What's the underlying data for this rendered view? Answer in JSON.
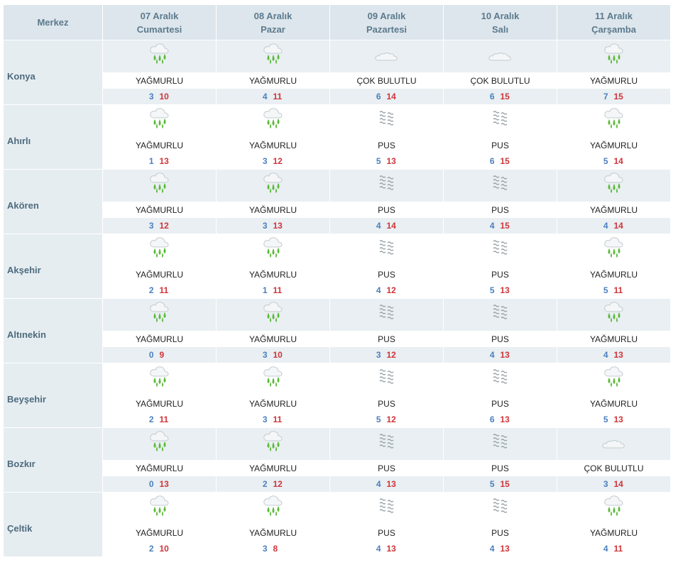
{
  "header": {
    "corner": "Merkez",
    "days": [
      {
        "date": "07 Aralık",
        "weekday": "Cumartesi"
      },
      {
        "date": "08 Aralık",
        "weekday": "Pazar"
      },
      {
        "date": "09 Aralık",
        "weekday": "Pazartesi"
      },
      {
        "date": "10 Aralık",
        "weekday": "Salı"
      },
      {
        "date": "11 Aralık",
        "weekday": "Çarşamba"
      }
    ]
  },
  "rows": [
    {
      "city": "Konya",
      "days": [
        {
          "icon": "rain-icon",
          "desc": "YAĞMURLU",
          "min": "3",
          "max": "10"
        },
        {
          "icon": "rain-icon",
          "desc": "YAĞMURLU",
          "min": "4",
          "max": "11"
        },
        {
          "icon": "cloud-icon",
          "desc": "ÇOK BULUTLU",
          "min": "6",
          "max": "14"
        },
        {
          "icon": "cloud-icon",
          "desc": "ÇOK BULUTLU",
          "min": "6",
          "max": "15"
        },
        {
          "icon": "rain-icon",
          "desc": "YAĞMURLU",
          "min": "7",
          "max": "15"
        }
      ]
    },
    {
      "city": "Ahırlı",
      "days": [
        {
          "icon": "rain-icon",
          "desc": "YAĞMURLU",
          "min": "1",
          "max": "13"
        },
        {
          "icon": "rain-icon",
          "desc": "YAĞMURLU",
          "min": "3",
          "max": "12"
        },
        {
          "icon": "haze-icon",
          "desc": "PUS",
          "min": "5",
          "max": "13"
        },
        {
          "icon": "haze-icon",
          "desc": "PUS",
          "min": "6",
          "max": "15"
        },
        {
          "icon": "rain-icon",
          "desc": "YAĞMURLU",
          "min": "5",
          "max": "14"
        }
      ]
    },
    {
      "city": "Akören",
      "days": [
        {
          "icon": "rain-icon",
          "desc": "YAĞMURLU",
          "min": "3",
          "max": "12"
        },
        {
          "icon": "rain-icon",
          "desc": "YAĞMURLU",
          "min": "3",
          "max": "13"
        },
        {
          "icon": "haze-icon",
          "desc": "PUS",
          "min": "4",
          "max": "14"
        },
        {
          "icon": "haze-icon",
          "desc": "PUS",
          "min": "4",
          "max": "15"
        },
        {
          "icon": "rain-icon",
          "desc": "YAĞMURLU",
          "min": "4",
          "max": "14"
        }
      ]
    },
    {
      "city": "Akşehir",
      "days": [
        {
          "icon": "rain-icon",
          "desc": "YAĞMURLU",
          "min": "2",
          "max": "11"
        },
        {
          "icon": "rain-icon",
          "desc": "YAĞMURLU",
          "min": "1",
          "max": "11"
        },
        {
          "icon": "haze-icon",
          "desc": "PUS",
          "min": "4",
          "max": "12"
        },
        {
          "icon": "haze-icon",
          "desc": "PUS",
          "min": "5",
          "max": "13"
        },
        {
          "icon": "rain-icon",
          "desc": "YAĞMURLU",
          "min": "5",
          "max": "11"
        }
      ]
    },
    {
      "city": "Altınekin",
      "days": [
        {
          "icon": "rain-icon",
          "desc": "YAĞMURLU",
          "min": "0",
          "max": "9"
        },
        {
          "icon": "rain-icon",
          "desc": "YAĞMURLU",
          "min": "3",
          "max": "10"
        },
        {
          "icon": "haze-icon",
          "desc": "PUS",
          "min": "3",
          "max": "12"
        },
        {
          "icon": "haze-icon",
          "desc": "PUS",
          "min": "4",
          "max": "13"
        },
        {
          "icon": "rain-icon",
          "desc": "YAĞMURLU",
          "min": "4",
          "max": "13"
        }
      ]
    },
    {
      "city": "Beyşehir",
      "days": [
        {
          "icon": "rain-icon",
          "desc": "YAĞMURLU",
          "min": "2",
          "max": "11"
        },
        {
          "icon": "rain-icon",
          "desc": "YAĞMURLU",
          "min": "3",
          "max": "11"
        },
        {
          "icon": "haze-icon",
          "desc": "PUS",
          "min": "5",
          "max": "12"
        },
        {
          "icon": "haze-icon",
          "desc": "PUS",
          "min": "6",
          "max": "13"
        },
        {
          "icon": "rain-icon",
          "desc": "YAĞMURLU",
          "min": "5",
          "max": "13"
        }
      ]
    },
    {
      "city": "Bozkır",
      "days": [
        {
          "icon": "rain-icon",
          "desc": "YAĞMURLU",
          "min": "0",
          "max": "13"
        },
        {
          "icon": "rain-icon",
          "desc": "YAĞMURLU",
          "min": "2",
          "max": "12"
        },
        {
          "icon": "haze-icon",
          "desc": "PUS",
          "min": "4",
          "max": "13"
        },
        {
          "icon": "haze-icon",
          "desc": "PUS",
          "min": "5",
          "max": "15"
        },
        {
          "icon": "cloud-icon",
          "desc": "ÇOK BULUTLU",
          "min": "3",
          "max": "14"
        }
      ]
    },
    {
      "city": "Çeltik",
      "days": [
        {
          "icon": "rain-icon",
          "desc": "YAĞMURLU",
          "min": "2",
          "max": "10"
        },
        {
          "icon": "rain-icon",
          "desc": "YAĞMURLU",
          "min": "3",
          "max": "8"
        },
        {
          "icon": "haze-icon",
          "desc": "PUS",
          "min": "4",
          "max": "13"
        },
        {
          "icon": "haze-icon",
          "desc": "PUS",
          "min": "4",
          "max": "13"
        },
        {
          "icon": "rain-icon",
          "desc": "YAĞMURLU",
          "min": "4",
          "max": "11"
        }
      ]
    }
  ],
  "colors": {
    "header_bg": "#dde6ec",
    "shade_bg": "#e9eff2",
    "min_temp": "#4a7fbf",
    "max_temp": "#d0353a"
  }
}
